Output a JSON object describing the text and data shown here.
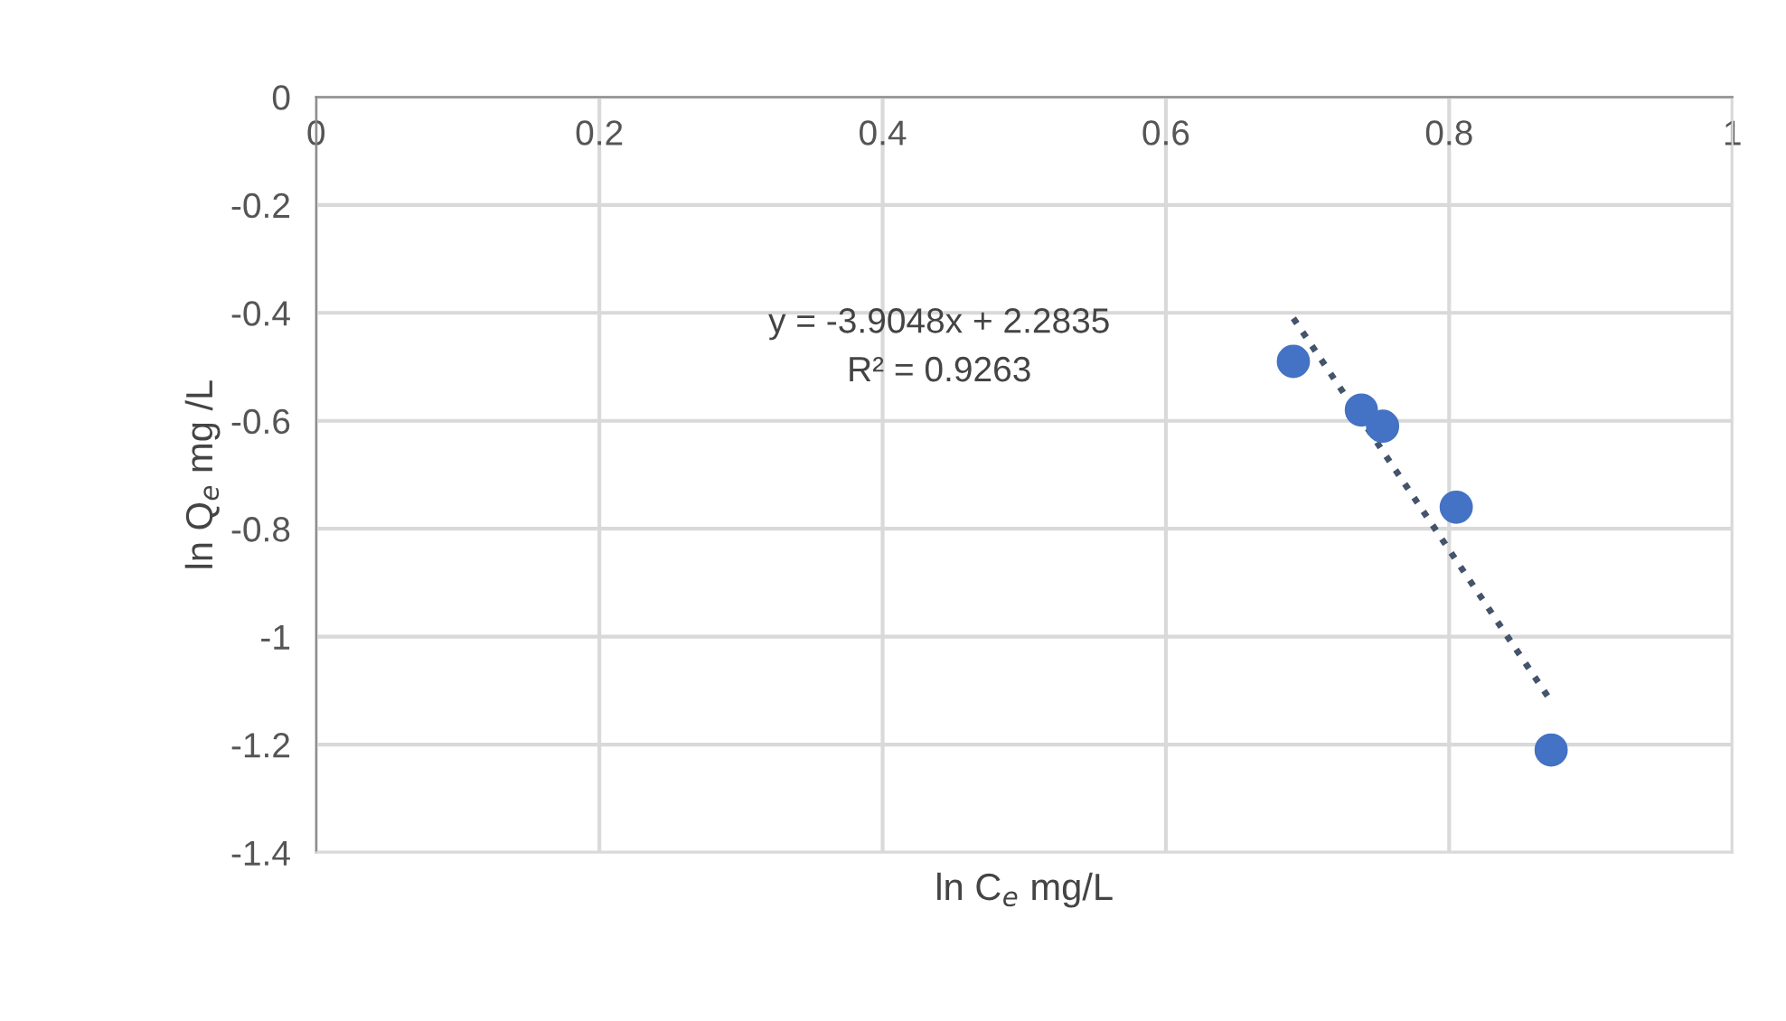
{
  "chart_data": {
    "type": "scatter",
    "xlabel": "ln C$_{e}$ mg/L",
    "ylabel": "ln Q$_{e}$ mg /L",
    "series": [
      {
        "color": "#4472c4",
        "marker": "circle",
        "x": [
          0.69,
          0.738,
          0.753,
          0.805,
          0.872
        ],
        "values": [
          -0.49,
          -0.58,
          -0.61,
          -0.76,
          -1.21
        ]
      },
      {
        "type": "line",
        "color": "#44546a",
        "marker": "none",
        "line_style": "dotted",
        "x": [
          0.69,
          0.872
        ],
        "values": [
          -0.41,
          -1.12
        ]
      }
    ],
    "annotations": [
      "y = -3.9048x + 2.2835",
      "R² = 0.9263"
    ],
    "xlim": [
      0,
      1
    ],
    "xticks": [
      0,
      0.2,
      0.4,
      0.6,
      0.8,
      1
    ],
    "ylim": [
      -1.4,
      0
    ],
    "yticks": [
      -1.4,
      -1.2,
      -1,
      -0.8,
      -0.6,
      -0.4,
      -0.2,
      0
    ],
    "grid": true
  }
}
